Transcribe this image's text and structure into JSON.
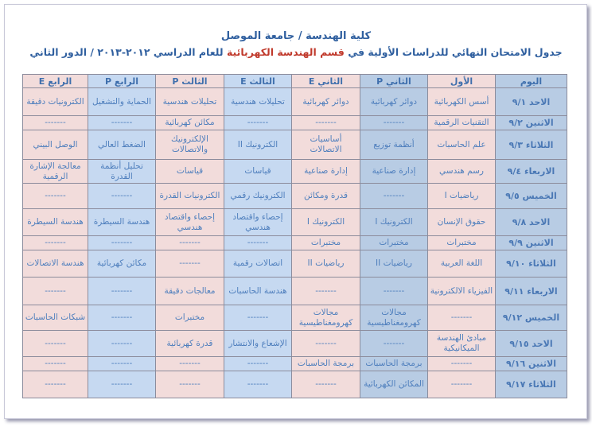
{
  "header": {
    "line1": "كلية الهندسة / جامعة الموصل",
    "line2_pre": "جدول الامتحان النهائي للدراسات الأولية في ",
    "line2_dept": "قسم الهندسة الكهربائية",
    "line2_post": " للعام الدراسي ٢٠١٢-٢٠١٣ / الدور الثاني"
  },
  "colors": {
    "text": "#4f7fbd",
    "dept_highlight": "#c0392b",
    "blue_col": "#b8cce4",
    "pink_col": "#f2dcdb",
    "light_blue_col": "#c6d9f1"
  },
  "columns": [
    "اليوم",
    "الأول",
    "الثاني P",
    "الثاني E",
    "الثالث E",
    "الثالث P",
    "الرابع P",
    "الرابع E"
  ],
  "rows": [
    [
      "الاحد ٩/١",
      "أسس الكهربائية",
      "دوائر كهربائية",
      "دوائر كهربائية",
      "تحليلات هندسية",
      "تحليلات هندسية",
      "الحماية والتشغيل",
      "الكترونيات دقيقة"
    ],
    [
      "الاثنين ٩/٢",
      "التقنيات الرقمية",
      "-------",
      "-------",
      "-------",
      "مكائن كهربائية",
      "-------",
      "-------"
    ],
    [
      "الثلاثاء ٩/٣",
      "علم الحاسبات",
      "أنظمة توزيع",
      "أساسيات الاتصالات",
      "الكترونيك II",
      "الإلكترونيك والاتصالات",
      "الضغط العالي",
      "الوصل البيني"
    ],
    [
      "الاربعاء ٩/٤",
      "رسم هندسي",
      "إدارة صناعية",
      "إدارة صناعية",
      "قياسات",
      "قياسات",
      "تحليل أنظمة القدرة",
      "معالجة الإشارة الرقمية"
    ],
    [
      "الخميس ٩/٥",
      "رياضيات I",
      "-------",
      "قدرة ومكائن",
      "الكترونيك رقمي",
      "الكترونيات القدرة",
      "-------",
      "-------"
    ],
    [
      "الاحد ٩/٨",
      "حقوق الإنسان",
      "الكترونيك I",
      "الكترونيك I",
      "إحصاء واقتصاد هندسي",
      "إحصاء واقتصاد هندسي",
      "هندسة السيطرة",
      "هندسة السيطرة"
    ],
    [
      "الاثنين ٩/٩",
      "مختبرات",
      "مختبرات",
      "مختبرات",
      "-------",
      "-------",
      "-------",
      "-------"
    ],
    [
      "الثلاثاء ٩/١٠",
      "اللغة العربية",
      "رياضيات II",
      "رياضيات II",
      "اتصالات رقمية",
      "-------",
      "مكائن كهربائية",
      "هندسة الاتصالات"
    ],
    [
      "الاربعاء ٩/١١",
      "الفيزياء الالكترونية",
      "-------",
      "-------",
      "هندسة الحاسبات",
      "معالجات دقيقة",
      "-------",
      "-------"
    ],
    [
      "الخميس ٩/١٢",
      "-------",
      "مجالات كهرومغناطيسية",
      "مجالات كهرومغناطيسية",
      "-------",
      "مختبرات",
      "-------",
      "شبكات الحاسبات"
    ],
    [
      "الاحد ٩/١٥",
      "مبادئ الهندسة الميكانيكية",
      "-------",
      "-------",
      "الإشعاع والانتشار",
      "قدرة كهربائية",
      "-------",
      "-------"
    ],
    [
      "الاثنين ٩/١٦",
      "-------",
      "برمجة الحاسبات",
      "برمجة الحاسبات",
      "-------",
      "-------",
      "-------",
      "-------"
    ],
    [
      "الثلاثاء ٩/١٧",
      "-------",
      "المكائن الكهربائية",
      "-------",
      "-------",
      "-------",
      "-------",
      "-------"
    ]
  ]
}
